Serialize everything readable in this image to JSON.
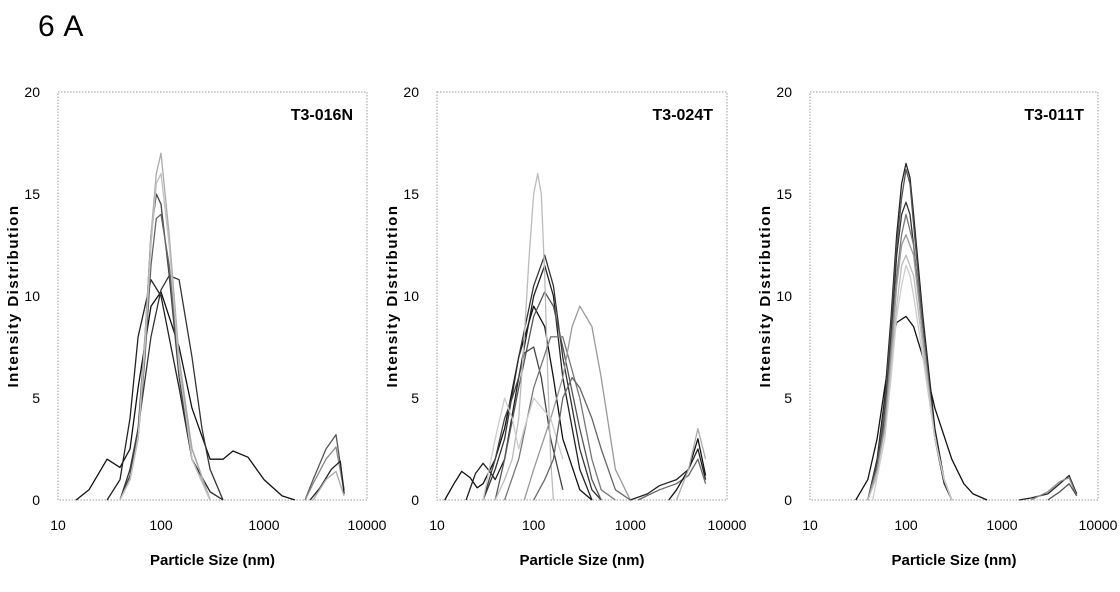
{
  "figure_label": "6 A",
  "chart_data": [
    {
      "type": "line",
      "title": "T3-016N",
      "xlabel": "Particle Size (nm)",
      "ylabel": "Intensity Distribution",
      "x_scale": "log",
      "xlim": [
        10,
        10000
      ],
      "ylim": [
        0,
        20
      ],
      "x_ticks": [
        "10",
        "100",
        "1000",
        "10000"
      ],
      "y_ticks": [
        "0",
        "5",
        "10",
        "15",
        "20"
      ],
      "grid": false,
      "series": [
        {
          "x": [
            15,
            20,
            30,
            40,
            50,
            60,
            80,
            100,
            150,
            200,
            300,
            400,
            500,
            700,
            1000,
            1500,
            2000
          ],
          "y": [
            0,
            0.5,
            2.0,
            1.6,
            2.5,
            5.5,
            9.5,
            10.2,
            7.5,
            4.5,
            2.0,
            2.0,
            2.4,
            2.1,
            1.0,
            0.2,
            0
          ],
          "color": "#111111"
        },
        {
          "x": [
            30,
            40,
            50,
            60,
            80,
            100,
            150,
            200,
            300,
            400
          ],
          "y": [
            0,
            1.0,
            4.0,
            8.0,
            10.8,
            10.0,
            5.5,
            2.0,
            0.4,
            0
          ],
          "color": "#222222"
        },
        {
          "x": [
            40,
            50,
            60,
            80,
            100,
            120,
            150,
            200,
            250,
            300,
            400
          ],
          "y": [
            0,
            1.5,
            3.5,
            8.0,
            10.3,
            11.0,
            10.8,
            7.0,
            3.5,
            1.5,
            0
          ],
          "color": "#333333"
        },
        {
          "x": [
            40,
            50,
            60,
            70,
            80,
            90,
            100,
            120,
            150,
            200,
            300
          ],
          "y": [
            0,
            1.2,
            3.5,
            8.0,
            13.0,
            15.0,
            14.5,
            11.0,
            6.0,
            2.0,
            0
          ],
          "color": "#444444"
        },
        {
          "x": [
            40,
            50,
            60,
            70,
            80,
            90,
            100,
            120,
            150,
            200,
            300
          ],
          "y": [
            0,
            1.0,
            3.0,
            7.0,
            11.5,
            13.8,
            14.0,
            11.5,
            6.5,
            2.5,
            0
          ],
          "color": "#666666"
        },
        {
          "x": [
            40,
            50,
            60,
            70,
            80,
            90,
            100,
            120,
            150,
            200,
            300
          ],
          "y": [
            0,
            1.0,
            3.0,
            8.0,
            13.0,
            16.0,
            17.0,
            13.0,
            7.0,
            2.5,
            0
          ],
          "color": "#aaaaaa"
        },
        {
          "x": [
            40,
            50,
            60,
            70,
            80,
            90,
            100,
            120,
            150,
            200,
            300
          ],
          "y": [
            0,
            1.0,
            3.0,
            7.5,
            12.5,
            15.5,
            16.0,
            12.5,
            6.5,
            2.0,
            0
          ],
          "color": "#c0c0c0"
        },
        {
          "x": [
            2500,
            3000,
            4000,
            5000,
            6000
          ],
          "y": [
            0,
            1.0,
            2.5,
            3.2,
            0.5
          ],
          "color": "#555555"
        },
        {
          "x": [
            2500,
            3000,
            4000,
            5000,
            6000
          ],
          "y": [
            0,
            0.8,
            2.0,
            2.6,
            0.4
          ],
          "color": "#888888"
        },
        {
          "x": [
            2800,
            3500,
            4500,
            5500,
            6000
          ],
          "y": [
            0,
            0.6,
            1.5,
            1.9,
            0.3
          ],
          "color": "#222222"
        },
        {
          "x": [
            3000,
            4000,
            5000,
            6000
          ],
          "y": [
            0,
            1.0,
            1.4,
            0.2
          ],
          "color": "#aaaaaa"
        }
      ]
    },
    {
      "type": "line",
      "title": "T3-024T",
      "xlabel": "Particle Size (nm)",
      "ylabel": "Intensity Distribution",
      "x_scale": "log",
      "xlim": [
        10,
        10000
      ],
      "ylim": [
        0,
        20
      ],
      "x_ticks": [
        "10",
        "100",
        "1000",
        "10000"
      ],
      "y_ticks": [
        "0",
        "5",
        "10",
        "15",
        "20"
      ],
      "grid": false,
      "series": [
        {
          "x": [
            12,
            15,
            18,
            22,
            26,
            30,
            40,
            50,
            70,
            100,
            130,
            160,
            200,
            300,
            400
          ],
          "y": [
            0,
            0.8,
            1.4,
            1.1,
            0.6,
            0.8,
            2.0,
            3.5,
            7.0,
            9.5,
            8.5,
            6.0,
            3.0,
            0.5,
            0
          ],
          "color": "#111111"
        },
        {
          "x": [
            20,
            25,
            30,
            35,
            40,
            50,
            70,
            100,
            130,
            160,
            200,
            300,
            400
          ],
          "y": [
            0,
            1.3,
            1.8,
            1.4,
            1.0,
            2.0,
            6.0,
            10.0,
            11.5,
            10.0,
            6.0,
            1.5,
            0
          ],
          "color": "#222222"
        },
        {
          "x": [
            30,
            40,
            50,
            70,
            100,
            130,
            160,
            200,
            300,
            400,
            500
          ],
          "y": [
            0,
            1.5,
            3.0,
            7.0,
            10.5,
            12.0,
            10.5,
            7.0,
            2.5,
            0.5,
            0
          ],
          "color": "#333333"
        },
        {
          "x": [
            40,
            50,
            70,
            100,
            130,
            160,
            200,
            300,
            400,
            500
          ],
          "y": [
            0,
            2.0,
            5.5,
            9.0,
            10.2,
            9.5,
            7.5,
            3.5,
            1.0,
            0
          ],
          "color": "#555555"
        },
        {
          "x": [
            30,
            40,
            50,
            60,
            70,
            80,
            100,
            120,
            150,
            200
          ],
          "y": [
            0,
            2.0,
            4.0,
            5.0,
            6.0,
            7.2,
            7.5,
            6.0,
            3.0,
            0.5
          ],
          "color": "#444444"
        },
        {
          "x": [
            40,
            50,
            60,
            70,
            80,
            90,
            100,
            110,
            120,
            130,
            140,
            150,
            160
          ],
          "y": [
            0,
            1.0,
            2.0,
            4.0,
            8.0,
            12.0,
            15.0,
            16.0,
            15.0,
            11.0,
            6.0,
            2.0,
            0
          ],
          "color": "#bbbbbb"
        },
        {
          "x": [
            50,
            70,
            100,
            150,
            200,
            300,
            400,
            500,
            700
          ],
          "y": [
            0,
            2.0,
            5.5,
            8.0,
            8.0,
            5.0,
            2.0,
            0.5,
            0
          ],
          "color": "#777777"
        },
        {
          "x": [
            80,
            100,
            150,
            200,
            250,
            300,
            400,
            500,
            700,
            1000
          ],
          "y": [
            0,
            1.5,
            4.0,
            6.0,
            8.5,
            9.5,
            8.5,
            6.0,
            1.5,
            0
          ],
          "color": "#999999"
        },
        {
          "x": [
            30,
            40,
            50,
            60,
            70,
            80,
            100,
            150,
            200
          ],
          "y": [
            0,
            3.0,
            5.0,
            4.0,
            2.5,
            3.5,
            5.0,
            4.0,
            2.0
          ],
          "color": "#cccccc"
        },
        {
          "x": [
            100,
            130,
            160,
            200,
            250,
            300,
            400,
            500,
            700,
            1000
          ],
          "y": [
            0,
            1.0,
            2.0,
            5.0,
            6.0,
            5.5,
            4.0,
            2.5,
            0.5,
            0
          ],
          "color": "#666666"
        },
        {
          "x": [
            1000,
            1500,
            2000,
            3000,
            4000,
            5000,
            6000
          ],
          "y": [
            0,
            0.3,
            0.7,
            1.0,
            1.5,
            2.5,
            1.0
          ],
          "color": "#222222"
        },
        {
          "x": [
            1200,
            2000,
            3000,
            4000,
            5000,
            6000
          ],
          "y": [
            0,
            0.5,
            0.8,
            1.2,
            2.0,
            0.8
          ],
          "color": "#666666"
        },
        {
          "x": [
            2500,
            3000,
            4000,
            5000,
            6000
          ],
          "y": [
            0,
            0.5,
            1.5,
            3.0,
            1.2
          ],
          "color": "#111111"
        },
        {
          "x": [
            3000,
            4000,
            5000,
            6000
          ],
          "y": [
            0,
            1.5,
            3.5,
            2.0
          ],
          "color": "#aaaaaa"
        }
      ]
    },
    {
      "type": "line",
      "title": "T3-011T",
      "xlabel": "Particle Size (nm)",
      "ylabel": "Intensity Distribution",
      "x_scale": "log",
      "xlim": [
        10,
        10000
      ],
      "ylim": [
        0,
        20
      ],
      "x_ticks": [
        "10",
        "100",
        "1000",
        "10000"
      ],
      "y_ticks": [
        "0",
        "5",
        "10",
        "15",
        "20"
      ],
      "grid": false,
      "series": [
        {
          "x": [
            30,
            40,
            50,
            60,
            70,
            80,
            100,
            120,
            150,
            200,
            300,
            400,
            500,
            700
          ],
          "y": [
            0,
            1.0,
            3.0,
            5.5,
            7.5,
            8.7,
            9.0,
            8.5,
            7.0,
            4.5,
            2.0,
            0.8,
            0.3,
            0
          ],
          "color": "#111111"
        },
        {
          "x": [
            40,
            50,
            60,
            70,
            80,
            90,
            100,
            110,
            120,
            150,
            200,
            250,
            300
          ],
          "y": [
            0,
            2.0,
            5.0,
            9.0,
            13.0,
            15.5,
            16.5,
            15.8,
            14.0,
            9.0,
            3.5,
            1.0,
            0
          ],
          "color": "#222222"
        },
        {
          "x": [
            40,
            50,
            60,
            70,
            80,
            90,
            100,
            110,
            120,
            150,
            200,
            250,
            300
          ],
          "y": [
            0,
            1.8,
            4.5,
            8.5,
            12.5,
            14.8,
            16.2,
            15.5,
            13.5,
            8.5,
            3.0,
            0.8,
            0
          ],
          "color": "#555555"
        },
        {
          "x": [
            40,
            50,
            60,
            70,
            80,
            90,
            100,
            110,
            120,
            150,
            200,
            250,
            300
          ],
          "y": [
            0,
            1.6,
            4.0,
            8.0,
            12.0,
            14.0,
            14.6,
            14.0,
            12.5,
            8.0,
            3.0,
            0.8,
            0
          ],
          "color": "#333333"
        },
        {
          "x": [
            40,
            50,
            60,
            70,
            80,
            90,
            100,
            120,
            150,
            200,
            250,
            300
          ],
          "y": [
            0,
            1.5,
            3.8,
            7.5,
            11.0,
            13.0,
            14.0,
            12.5,
            8.0,
            3.0,
            1.0,
            0
          ],
          "color": "#777777"
        },
        {
          "x": [
            40,
            50,
            60,
            70,
            80,
            90,
            100,
            120,
            150,
            200,
            250,
            300
          ],
          "y": [
            0,
            1.5,
            3.5,
            7.0,
            10.5,
            12.5,
            13.0,
            12.0,
            8.0,
            3.0,
            1.0,
            0
          ],
          "color": "#999999"
        },
        {
          "x": [
            40,
            50,
            60,
            70,
            80,
            90,
            100,
            120,
            150,
            200,
            250,
            300
          ],
          "y": [
            0,
            1.2,
            3.0,
            6.5,
            9.5,
            11.5,
            12.0,
            11.0,
            7.5,
            3.0,
            1.0,
            0
          ],
          "color": "#bbbbbb"
        },
        {
          "x": [
            45,
            60,
            70,
            80,
            90,
            100,
            110,
            120,
            150,
            200,
            250,
            300
          ],
          "y": [
            0,
            3.0,
            6.0,
            9.0,
            10.5,
            11.5,
            11.0,
            10.0,
            7.0,
            3.0,
            1.0,
            0
          ],
          "color": "#cccccc"
        },
        {
          "x": [
            1500,
            2000,
            3000,
            4000,
            5000,
            6000
          ],
          "y": [
            0,
            0.1,
            0.3,
            0.8,
            1.2,
            0.3
          ],
          "color": "#222222"
        },
        {
          "x": [
            2000,
            3000,
            4000,
            5000,
            6000
          ],
          "y": [
            0,
            0.4,
            0.9,
            1.1,
            0.2
          ],
          "color": "#888888"
        },
        {
          "x": [
            3000,
            4000,
            5000,
            6000
          ],
          "y": [
            0,
            0.4,
            0.8,
            0.2
          ],
          "color": "#555555"
        }
      ]
    }
  ]
}
